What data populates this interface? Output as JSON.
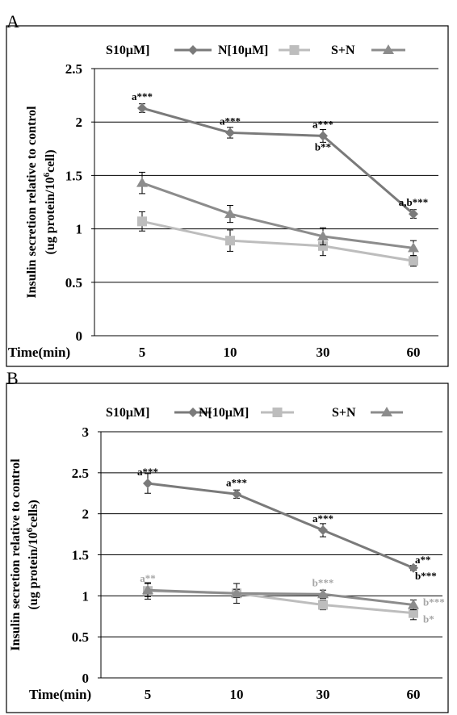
{
  "chart_data": [
    {
      "type": "line",
      "panel_label": "A",
      "ylabel_line1": "Insulin secretion relative to control",
      "ylabel_line2_prefix": "(ug protein/10",
      "ylabel_line2_sup": "6",
      "ylabel_line2_suffix": "cell)",
      "xlabel": "Time(min)",
      "categories": [
        "5",
        "10",
        "30",
        "60"
      ],
      "ylim": [
        0,
        2.5
      ],
      "yticks": [
        "0",
        "0.5",
        "1",
        "1.5",
        "2",
        "2.5"
      ],
      "grid": true,
      "legend_placement": "top",
      "series": [
        {
          "name": "S10μM]",
          "color": "#7a7a7a",
          "marker": "diamond",
          "values": [
            2.13,
            1.9,
            1.87,
            1.14
          ],
          "errors": [
            0.04,
            0.05,
            0.06,
            0.04
          ]
        },
        {
          "name": "N[10μM]",
          "color": "#bdbdbd",
          "marker": "square",
          "values": [
            1.07,
            0.89,
            0.84,
            0.7
          ],
          "errors": [
            0.09,
            0.1,
            0.09,
            0.05
          ]
        },
        {
          "name": "S+N",
          "color": "#8c8c8c",
          "marker": "triangle",
          "values": [
            1.43,
            1.14,
            0.93,
            0.82
          ],
          "errors": [
            0.1,
            0.08,
            0.08,
            0.07
          ]
        }
      ],
      "annotations": [
        {
          "text": "a***",
          "category": "5",
          "value": 2.13,
          "pos": "above",
          "color": "#000000"
        },
        {
          "text": "a***",
          "category": "10",
          "value": 1.9,
          "pos": "above",
          "color": "#000000"
        },
        {
          "text": "a***",
          "category": "30",
          "value": 1.87,
          "pos": "above",
          "color": "#000000"
        },
        {
          "text": "b**",
          "category": "30",
          "value": 1.87,
          "pos": "below",
          "color": "#000000"
        },
        {
          "text": "a,b***",
          "category": "60",
          "value": 1.14,
          "pos": "above",
          "color": "#000000"
        }
      ]
    },
    {
      "type": "line",
      "panel_label": "B",
      "ylabel_line1": "Insulin secretion relative to control",
      "ylabel_line2_prefix": "(ug protein/10",
      "ylabel_line2_sup": "6",
      "ylabel_line2_suffix": "cells)",
      "xlabel": "Time(min)",
      "categories": [
        "5",
        "10",
        "30",
        "60"
      ],
      "ylim": [
        0,
        3
      ],
      "yticks": [
        "0",
        "0.5",
        "1",
        "1.5",
        "2",
        "2.5",
        "3"
      ],
      "grid": true,
      "legend_placement": "top",
      "series": [
        {
          "name": "S10μM]",
          "color": "#7a7a7a",
          "marker": "diamond",
          "values": [
            2.37,
            2.24,
            1.8,
            1.34
          ],
          "errors": [
            0.12,
            0.05,
            0.08,
            0.03
          ]
        },
        {
          "name": "N[10μM]",
          "color": "#bdbdbd",
          "marker": "square",
          "values": [
            1.06,
            1.03,
            0.89,
            0.79
          ],
          "errors": [
            0.1,
            0.12,
            0.06,
            0.08
          ]
        },
        {
          "name": "S+N",
          "color": "#8c8c8c",
          "marker": "triangle",
          "values": [
            1.07,
            1.03,
            1.02,
            0.89
          ],
          "errors": [
            0.08,
            0.05,
            0.05,
            0.06
          ]
        }
      ],
      "annotations": [
        {
          "text": "a***",
          "category": "5",
          "value": 2.37,
          "pos": "above",
          "color": "#000000"
        },
        {
          "text": "a**",
          "category": "5",
          "value": 1.07,
          "pos": "above",
          "color": "#a6a6a6"
        },
        {
          "text": "a***",
          "category": "10",
          "value": 2.24,
          "pos": "above",
          "color": "#000000"
        },
        {
          "text": "a***",
          "category": "30",
          "value": 1.8,
          "pos": "above",
          "color": "#000000"
        },
        {
          "text": "b***",
          "category": "30",
          "value": 1.02,
          "pos": "above",
          "color": "#a6a6a6"
        },
        {
          "text": "a**",
          "category": "60",
          "value": 1.34,
          "pos": "above-right",
          "color": "#000000"
        },
        {
          "text": "b***",
          "category": "60",
          "value": 1.34,
          "pos": "below-right",
          "color": "#000000"
        },
        {
          "text": "b***",
          "category": "60",
          "value": 0.89,
          "pos": "right",
          "color": "#a6a6a6"
        },
        {
          "text": "b*",
          "category": "60",
          "value": 0.79,
          "pos": "right-low",
          "color": "#a6a6a6"
        }
      ]
    }
  ]
}
